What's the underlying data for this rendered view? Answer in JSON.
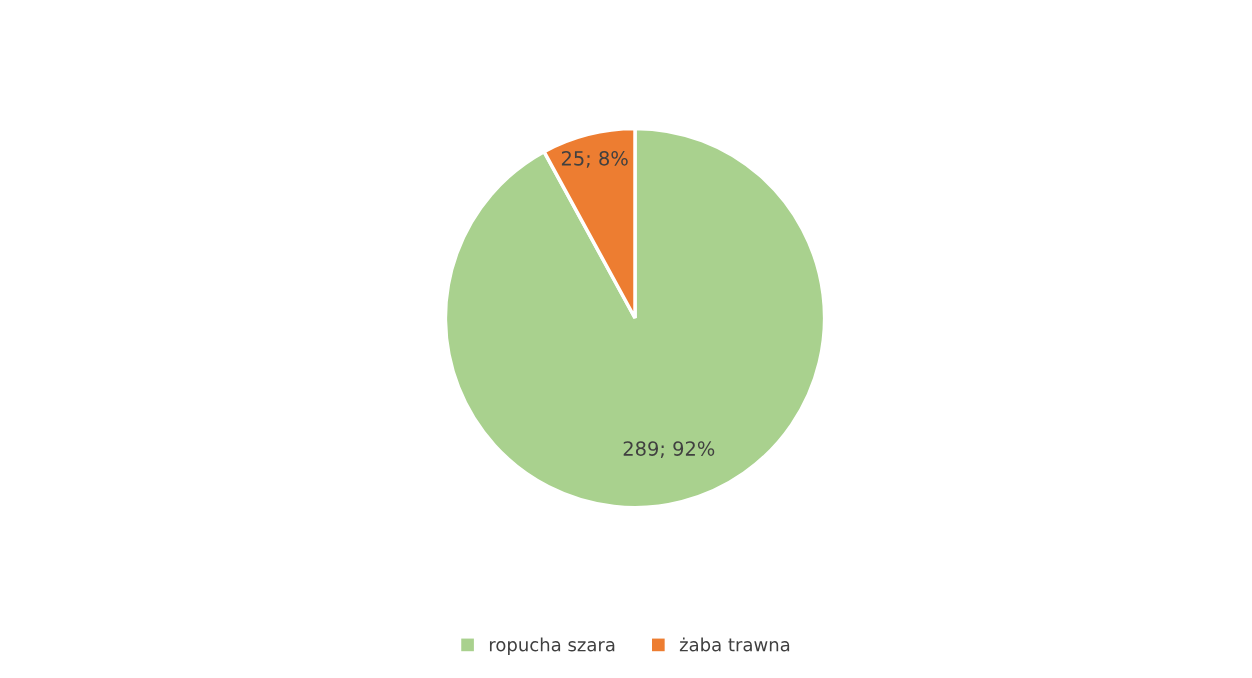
{
  "chart_data": {
    "type": "pie",
    "categories": [
      "ropucha szara",
      "żaba trawna"
    ],
    "values": [
      289,
      25
    ],
    "colors": [
      "#a9d18e",
      "#ed7d31"
    ],
    "value_labels": [
      "289; 92%",
      "25; 8%"
    ],
    "legend": "bottom"
  }
}
